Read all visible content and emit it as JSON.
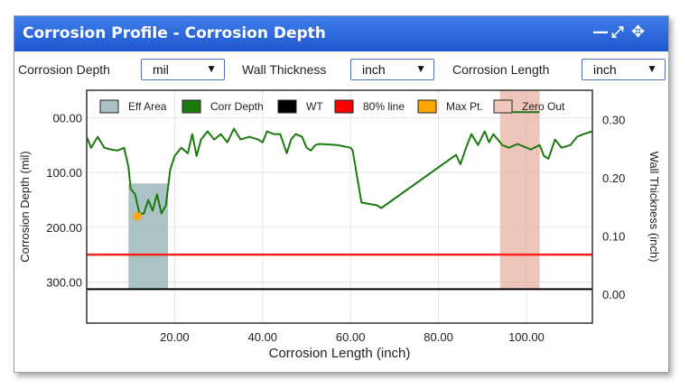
{
  "panel": {
    "title": "Corrosion Profile - Corrosion Depth",
    "icons": [
      "minimize-icon",
      "expand-icon",
      "move-icon"
    ]
  },
  "controls": {
    "depth_label": "Corrosion Depth",
    "depth_unit": "mil",
    "wall_label": "Wall Thickness",
    "wall_unit": "inch",
    "length_label": "Corrosion Length",
    "length_unit": "inch"
  },
  "chart_data": {
    "type": "line",
    "xlabel": "Corrosion Length (inch)",
    "ylabel": "Corrosion Depth (mil)",
    "y2label": "Wall Thickness (inch)",
    "xlim": [
      0,
      115
    ],
    "ylim": [
      375,
      -50
    ],
    "y2lim": [
      -0.05,
      0.35
    ],
    "x_ticks": [
      "20.00",
      "40.00",
      "60.00",
      "80.00",
      "100.00"
    ],
    "x_tick_values": [
      20,
      40,
      60,
      80,
      100
    ],
    "y_ticks": [
      "00.00",
      "100.00",
      "200.00",
      "300.00"
    ],
    "y_tick_values": [
      0,
      100,
      200,
      300
    ],
    "y2_ticks": [
      "0.30",
      "0.20",
      "0.10",
      "0.00"
    ],
    "y2_tick_values": [
      0.3,
      0.2,
      0.1,
      0.0
    ],
    "legend": [
      {
        "label": "Eff Area",
        "color": "#a9c0c4"
      },
      {
        "label": "Corr Depth",
        "color": "#1a7a10"
      },
      {
        "label": "WT",
        "color": "#000000"
      },
      {
        "label": "80% line",
        "color": "#ff0000"
      },
      {
        "label": "Max Pt.",
        "color": "#ffa500"
      },
      {
        "label": "Zero Out",
        "color": "#efc7bd"
      }
    ],
    "colors": {
      "corr_depth": "#1a7a10",
      "eff_area": "#9db8bc",
      "zero_out": "#e8b7a9",
      "line_80": "#ff2020",
      "wt": "#000000",
      "max_pt": "#f5a623",
      "grid": "#e3e3e3"
    },
    "corr_depth": {
      "x": [
        0.0,
        1.0,
        2.5,
        4.0,
        5.5,
        7.0,
        8.5,
        9.5,
        10.0,
        11.0,
        12.0,
        13.0,
        14.0,
        15.0,
        16.0,
        17.0,
        18.0,
        19.0,
        20.0,
        21.5,
        23.0,
        24.0,
        25.0,
        26.0,
        27.5,
        29.0,
        30.5,
        32.0,
        33.5,
        35.0,
        37.0,
        39.0,
        40.0,
        41.0,
        42.5,
        44.0,
        45.5,
        46.5,
        47.5,
        49.0,
        50.0,
        51.0,
        52.0,
        53.0,
        57.0,
        60.0,
        60.5,
        62.5,
        66.0,
        67.0,
        84.0,
        85.0,
        86.5,
        87.5,
        89.0,
        90.5,
        91.5,
        92.5,
        93.5,
        94.5,
        96.0,
        98.0,
        101.0,
        103.0,
        104.0,
        105.0,
        106.5,
        108.0,
        110.0,
        111.5,
        113.0,
        115.0
      ],
      "y": [
        35,
        55,
        35,
        55,
        58,
        60,
        55,
        90,
        130,
        140,
        175,
        175,
        150,
        170,
        140,
        175,
        160,
        95,
        70,
        55,
        65,
        30,
        70,
        40,
        25,
        40,
        30,
        45,
        20,
        40,
        35,
        40,
        45,
        25,
        30,
        30,
        65,
        40,
        30,
        35,
        55,
        60,
        50,
        48,
        50,
        55,
        60,
        155,
        160,
        165,
        68,
        85,
        50,
        30,
        50,
        25,
        45,
        30,
        40,
        50,
        55,
        48,
        58,
        50,
        70,
        75,
        40,
        55,
        50,
        35,
        30,
        25
      ],
      "zero_out_segment": {
        "x": [
          94.0,
          103.0
        ],
        "y": [
          -10,
          -10
        ]
      }
    },
    "eff_area": {
      "x_start": 9.5,
      "x_end": 18.5
    },
    "zero_out": {
      "x_start": 94.0,
      "x_end": 103.0
    },
    "line_80": {
      "y": 250
    },
    "wt_line": {
      "y": 313
    },
    "max_point": {
      "x": 11.5,
      "y": 180
    }
  }
}
